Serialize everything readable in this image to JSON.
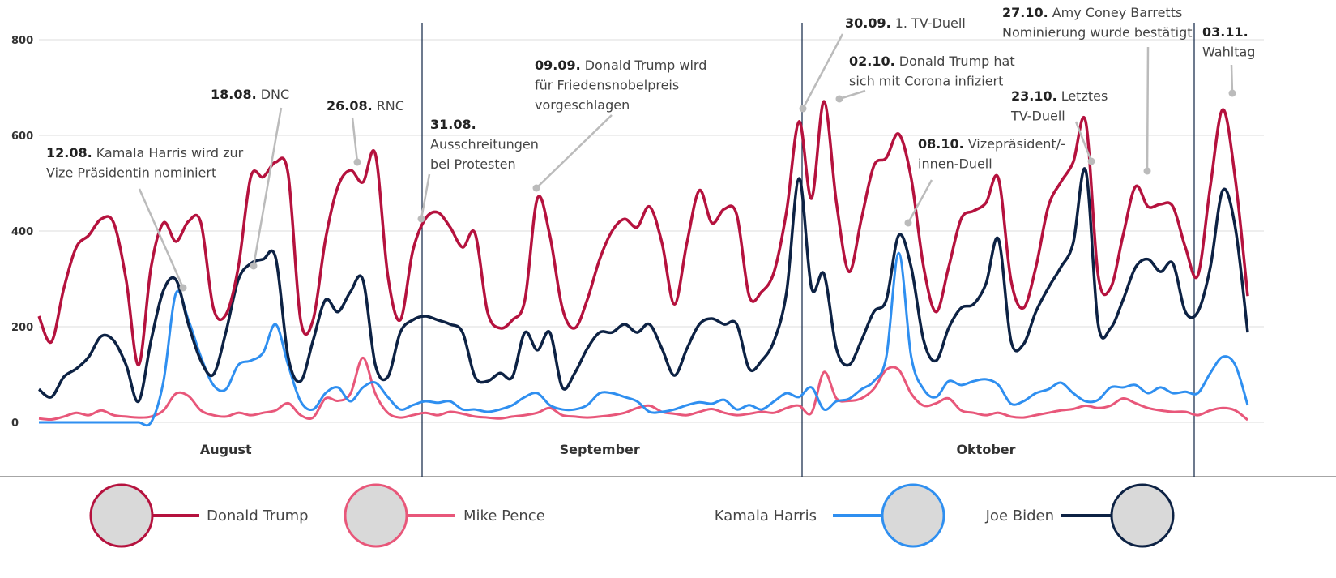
{
  "chart_data": {
    "type": "line",
    "categories": [
      null,
      null,
      null,
      null,
      null,
      null,
      null,
      null,
      null,
      null,
      null,
      null,
      null,
      null,
      null,
      "August",
      null,
      null,
      null,
      null,
      null,
      null,
      null,
      null,
      null,
      null,
      null,
      null,
      null,
      null,
      null,
      null,
      null,
      null,
      null,
      null,
      null,
      null,
      null,
      null,
      null,
      null,
      null,
      null,
      null,
      "September",
      null,
      null,
      null,
      null,
      null,
      null,
      null,
      null,
      null,
      null,
      null,
      null,
      null,
      null,
      null,
      null,
      null,
      null,
      null,
      null,
      null,
      null,
      null,
      null,
      null,
      null,
      null,
      null,
      null,
      null,
      "Oktober",
      null,
      null,
      null,
      null,
      null,
      null,
      null,
      null,
      null,
      null,
      null,
      null,
      null,
      null,
      null,
      null,
      null,
      null,
      null,
      null,
      null
    ],
    "ylim": [
      0,
      800
    ],
    "yticks": [
      0,
      200,
      400,
      600,
      800
    ],
    "grid": true,
    "series": [
      {
        "name": "Donald Trump",
        "color": "#b5123e",
        "values": [
          222,
          168,
          280,
          366,
          391,
          425,
          417,
          298,
          120,
          324,
          417,
          378,
          420,
          417,
          239,
          225,
          324,
          513,
          513,
          544,
          519,
          214,
          214,
          383,
          493,
          527,
          502,
          561,
          307,
          214,
          358,
          425,
          439,
          408,
          366,
          395,
          231,
          197,
          214,
          256,
          468,
          391,
          239,
          197,
          256,
          341,
          400,
          425,
          408,
          451,
          375,
          247,
          375,
          485,
          417,
          446,
          434,
          264,
          273,
          315,
          442,
          629,
          468,
          671,
          459,
          315,
          425,
          536,
          553,
          603,
          510,
          324,
          231,
          324,
          425,
          442,
          459,
          510,
          298,
          239,
          324,
          451,
          502,
          544,
          629,
          307,
          281,
          391,
          493,
          451,
          456,
          451,
          366,
          307,
          493,
          654,
          510,
          264
        ]
      },
      {
        "name": "Mike Pence",
        "color": "#e8577a",
        "values": [
          8,
          6,
          12,
          20,
          15,
          25,
          15,
          12,
          10,
          12,
          25,
          60,
          55,
          25,
          15,
          12,
          20,
          15,
          20,
          25,
          40,
          15,
          10,
          50,
          45,
          60,
          135,
          60,
          20,
          10,
          15,
          20,
          15,
          22,
          18,
          12,
          10,
          8,
          12,
          15,
          20,
          30,
          15,
          12,
          10,
          12,
          15,
          20,
          30,
          35,
          22,
          18,
          15,
          22,
          28,
          20,
          15,
          18,
          22,
          20,
          30,
          35,
          20,
          105,
          50,
          45,
          50,
          70,
          110,
          110,
          60,
          35,
          40,
          50,
          25,
          20,
          15,
          20,
          12,
          10,
          15,
          20,
          25,
          28,
          35,
          30,
          35,
          50,
          40,
          30,
          25,
          22,
          22,
          15,
          25,
          30,
          25,
          5
        ]
      },
      {
        "name": "Kamala Harris",
        "color": "#2f8ff0",
        "values": [
          0,
          0,
          0,
          0,
          0,
          0,
          0,
          0,
          0,
          0,
          86,
          270,
          214,
          137,
          78,
          69,
          120,
          129,
          146,
          205,
          120,
          44,
          27,
          61,
          73,
          44,
          73,
          83,
          53,
          27,
          36,
          44,
          41,
          44,
          27,
          27,
          22,
          27,
          36,
          53,
          61,
          36,
          27,
          27,
          36,
          61,
          61,
          53,
          44,
          22,
          22,
          27,
          36,
          42,
          39,
          47,
          27,
          36,
          27,
          44,
          61,
          53,
          73,
          27,
          44,
          49,
          69,
          86,
          137,
          354,
          137,
          69,
          53,
          86,
          78,
          86,
          90,
          78,
          39,
          44,
          61,
          69,
          83,
          61,
          44,
          47,
          73,
          73,
          78,
          61,
          73,
          61,
          64,
          61,
          103,
          137,
          120,
          36
        ]
      },
      {
        "name": "Joe Biden",
        "color": "#0d2244",
        "values": [
          69,
          53,
          95,
          112,
          137,
          180,
          171,
          120,
          44,
          171,
          276,
          298,
          205,
          129,
          100,
          188,
          298,
          332,
          341,
          344,
          137,
          86,
          171,
          256,
          231,
          273,
          298,
          120,
          95,
          188,
          214,
          222,
          214,
          205,
          188,
          95,
          86,
          103,
          95,
          188,
          151,
          188,
          73,
          103,
          154,
          188,
          188,
          205,
          188,
          205,
          154,
          98,
          154,
          205,
          217,
          205,
          205,
          112,
          129,
          171,
          273,
          510,
          281,
          310,
          154,
          120,
          171,
          231,
          256,
          391,
          324,
          171,
          129,
          197,
          239,
          247,
          290,
          383,
          171,
          163,
          231,
          281,
          324,
          375,
          527,
          205,
          197,
          256,
          324,
          341,
          315,
          332,
          231,
          231,
          324,
          485,
          408,
          188
        ]
      }
    ],
    "annotations": [
      {
        "date": "12.08.",
        "lines": [
          "Kamala Harris wird zur",
          "Vize Präsidentin nominiert"
        ]
      },
      {
        "date": "18.08.",
        "lines": [
          "DNC"
        ]
      },
      {
        "date": "26.08.",
        "lines": [
          "RNC"
        ]
      },
      {
        "date": "31.08.",
        "lines": [
          "Ausschreitungen",
          "bei Protesten"
        ]
      },
      {
        "date": "09.09.",
        "lines": [
          "Donald Trump wird",
          "für Friedensnobelpreis",
          "vorgeschlagen"
        ]
      },
      {
        "date": "30.09.",
        "lines": [
          "1. TV-Duell"
        ]
      },
      {
        "date": "02.10.",
        "lines": [
          "Donald Trump hat",
          "sich mit Corona infiziert"
        ]
      },
      {
        "date": "08.10.",
        "lines": [
          "Vizepräsident/-",
          "innen-Duell"
        ]
      },
      {
        "date": "23.10.",
        "lines": [
          "Letztes",
          "TV-Duell"
        ]
      },
      {
        "date": "27.10.",
        "lines": [
          "Amy Coney Barretts",
          "Nominierung wurde bestätigt"
        ]
      },
      {
        "date": "03.11.",
        "lines": [
          "Wahltag"
        ]
      }
    ]
  }
}
